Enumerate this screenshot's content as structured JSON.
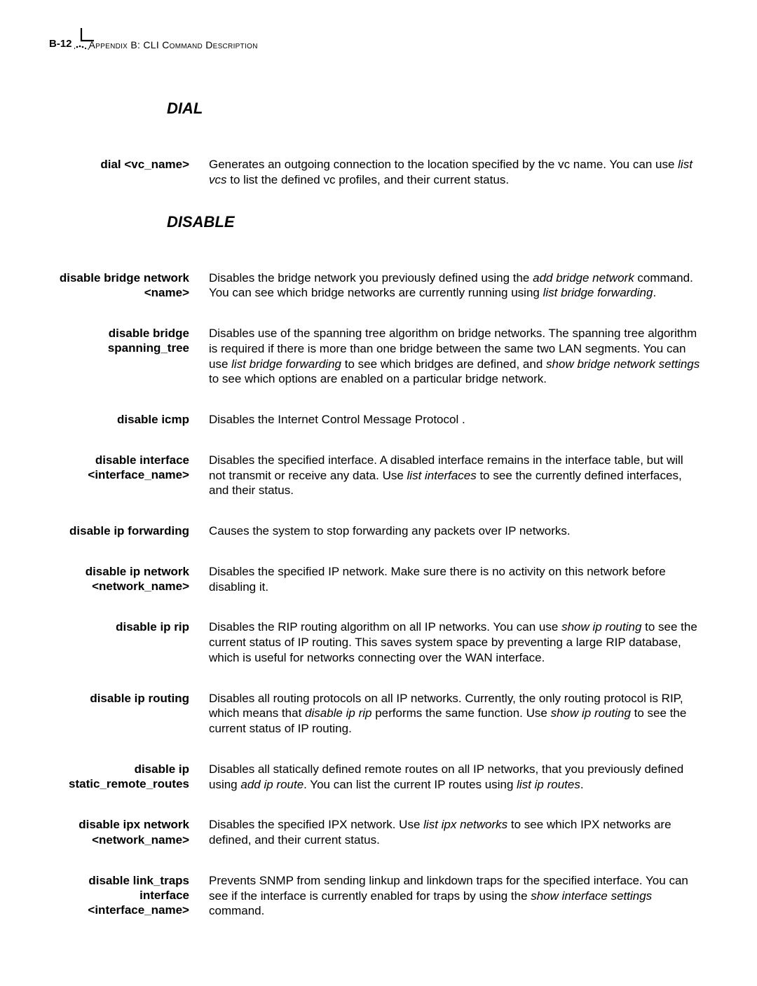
{
  "header": {
    "page_number": "B-12",
    "title": "Appendix B: CLI Command Description"
  },
  "sections": [
    {
      "heading": "DIAL",
      "entries": [
        {
          "term": "dial <vc_name>",
          "desc_parts": [
            {
              "t": "Generates an outgoing connection to the location specified by the vc name. You can use ",
              "i": false
            },
            {
              "t": "list vcs",
              "i": true
            },
            {
              "t": " to list the defined vc profiles, and their current status.",
              "i": false
            }
          ]
        }
      ]
    },
    {
      "heading": "DISABLE",
      "entries": [
        {
          "term": "disable bridge network <name>",
          "desc_parts": [
            {
              "t": "Disables the bridge network you previously defined using the ",
              "i": false
            },
            {
              "t": "add bridge network",
              "i": true
            },
            {
              "t": " command. You can see which bridge networks are currently running using ",
              "i": false
            },
            {
              "t": "list bridge forwarding",
              "i": true
            },
            {
              "t": ".",
              "i": false
            }
          ]
        },
        {
          "term": "disable bridge spanning_tree",
          "desc_parts": [
            {
              "t": "Disables use of the spanning tree algorithm on bridge networks. The spanning tree algorithm is required if there is more than one bridge between the same two LAN segments. You can use ",
              "i": false
            },
            {
              "t": "list bridge forwarding",
              "i": true
            },
            {
              "t": " to see which bridges are defined, and ",
              "i": false
            },
            {
              "t": "show bridge network settings",
              "i": true
            },
            {
              "t": " to see which options are enabled on a particular bridge network.",
              "i": false
            }
          ]
        },
        {
          "term": "disable icmp",
          "desc_parts": [
            {
              "t": "Disables the Internet Control Message Protocol .",
              "i": false
            }
          ]
        },
        {
          "term": "disable interface <interface_name>",
          "desc_parts": [
            {
              "t": "Disables the specified interface.  A disabled interface remains in the interface table, but will not transmit or receive any data. Use ",
              "i": false
            },
            {
              "t": "list interfaces",
              "i": true
            },
            {
              "t": " to see the currently defined interfaces, and their status.",
              "i": false
            }
          ]
        },
        {
          "term": "disable ip forwarding",
          "desc_parts": [
            {
              "t": "Causes the system to stop forwarding any packets over IP networks.",
              "i": false
            }
          ]
        },
        {
          "term": "disable ip network <network_name>",
          "desc_parts": [
            {
              "t": "Disables the specified IP network. Make sure there is no activity on this network before disabling it.",
              "i": false
            }
          ]
        },
        {
          "term": "disable ip rip",
          "desc_parts": [
            {
              "t": "Disables the RIP routing algorithm on all IP networks. You can use ",
              "i": false
            },
            {
              "t": "show ip routing",
              "i": true
            },
            {
              "t": " to see the current status of IP routing. This saves system space by preventing a large RIP database, which is useful for networks connecting over the WAN interface.",
              "i": false
            }
          ]
        },
        {
          "term": "disable ip routing",
          "desc_parts": [
            {
              "t": "Disables all routing protocols on all IP networks. Currently, the only routing protocol is RIP, which means that ",
              "i": false
            },
            {
              "t": "disable ip rip",
              "i": true
            },
            {
              "t": " performs the same function. Use ",
              "i": false
            },
            {
              "t": "show ip routing",
              "i": true
            },
            {
              "t": " to see the current status of IP routing.",
              "i": false
            }
          ]
        },
        {
          "term": "disable ip static_remote_routes",
          "desc_parts": [
            {
              "t": "Disables all statically defined remote routes on all IP networks, that you previously defined using ",
              "i": false
            },
            {
              "t": "add ip route",
              "i": true
            },
            {
              "t": ". You can list the current IP routes using ",
              "i": false
            },
            {
              "t": "list ip routes",
              "i": true
            },
            {
              "t": ".",
              "i": false
            }
          ]
        },
        {
          "term": "disable ipx network <network_name>",
          "desc_parts": [
            {
              "t": "Disables the specified IPX network. Use ",
              "i": false
            },
            {
              "t": "list ipx networks",
              "i": true
            },
            {
              "t": " to see which IPX networks are defined, and their current status.",
              "i": false
            }
          ]
        },
        {
          "term": "disable link_traps interface <interface_name>",
          "desc_parts": [
            {
              "t": "Prevents SNMP from sending linkup and linkdown traps for the specified interface. You can see if the interface is currently enabled for traps by using the ",
              "i": false
            },
            {
              "t": "show interface settings",
              "i": true
            },
            {
              "t": " command.",
              "i": false
            }
          ]
        }
      ]
    }
  ]
}
